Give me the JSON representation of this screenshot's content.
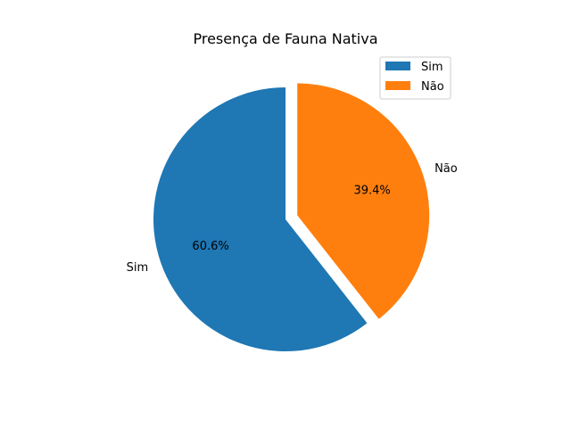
{
  "chart_data": {
    "type": "pie",
    "title": "Presença de Fauna Nativa",
    "slices": [
      {
        "label": "Sim",
        "value": 60.6,
        "pct_label": "60.6%",
        "color": "#1f77b4",
        "exploded": false
      },
      {
        "label": "Não",
        "value": 39.4,
        "pct_label": "39.4%",
        "color": "#ff7f0e",
        "exploded": true
      }
    ],
    "start_angle_deg": 90,
    "direction": "counterclockwise",
    "legend": {
      "placement": "top-right",
      "entries": [
        "Sim",
        "Não"
      ]
    }
  }
}
